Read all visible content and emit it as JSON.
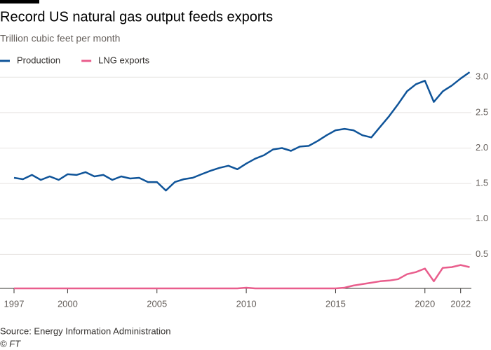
{
  "chart_data": {
    "type": "line",
    "title": "Record US natural gas output feeds exports",
    "subtitle": "Trillion cubic feet per month",
    "source": "Source: Energy Information Administration",
    "credit": "© FT",
    "x": [
      1997,
      1997.5,
      1998,
      1998.5,
      1999,
      1999.5,
      2000,
      2000.5,
      2001,
      2001.5,
      2002,
      2002.5,
      2003,
      2003.5,
      2004,
      2004.5,
      2005,
      2005.5,
      2006,
      2006.5,
      2007,
      2007.5,
      2008,
      2008.5,
      2009,
      2009.5,
      2010,
      2010.5,
      2011,
      2011.5,
      2012,
      2012.5,
      2013,
      2013.5,
      2014,
      2014.5,
      2015,
      2015.5,
      2016,
      2016.5,
      2017,
      2017.5,
      2018,
      2018.5,
      2019,
      2019.5,
      2020,
      2020.5,
      2021,
      2021.5,
      2022,
      2022.5
    ],
    "series": [
      {
        "name": "Production",
        "color": "#0f5499",
        "values": [
          1.58,
          1.56,
          1.62,
          1.55,
          1.6,
          1.55,
          1.63,
          1.62,
          1.66,
          1.6,
          1.62,
          1.55,
          1.6,
          1.57,
          1.58,
          1.52,
          1.52,
          1.4,
          1.52,
          1.56,
          1.58,
          1.63,
          1.68,
          1.72,
          1.75,
          1.7,
          1.78,
          1.85,
          1.9,
          1.98,
          2.0,
          1.96,
          2.02,
          2.03,
          2.1,
          2.18,
          2.25,
          2.27,
          2.25,
          2.18,
          2.15,
          2.3,
          2.45,
          2.62,
          2.8,
          2.9,
          2.95,
          2.65,
          2.8,
          2.88,
          2.98,
          3.07
        ]
      },
      {
        "name": "LNG exports",
        "color": "#e95d8c",
        "values": [
          0.02,
          0.02,
          0.02,
          0.02,
          0.02,
          0.02,
          0.02,
          0.02,
          0.02,
          0.02,
          0.02,
          0.02,
          0.02,
          0.02,
          0.02,
          0.02,
          0.02,
          0.02,
          0.02,
          0.02,
          0.02,
          0.02,
          0.02,
          0.02,
          0.02,
          0.02,
          0.03,
          0.02,
          0.02,
          0.02,
          0.02,
          0.02,
          0.02,
          0.02,
          0.02,
          0.02,
          0.02,
          0.03,
          0.06,
          0.08,
          0.1,
          0.12,
          0.13,
          0.15,
          0.22,
          0.25,
          0.3,
          0.12,
          0.31,
          0.32,
          0.35,
          0.32
        ]
      }
    ],
    "xlim": [
      1997,
      2022.6
    ],
    "xticks": [
      1997,
      2000,
      2005,
      2010,
      2015,
      2020,
      2022
    ],
    "ylim": [
      0,
      3.15
    ],
    "yticks": [
      {
        "value": 3,
        "label": "3.0"
      },
      2.5,
      {
        "value": 2,
        "label": "2.0"
      },
      1.5,
      {
        "value": 1,
        "label": "1.0"
      },
      0.5
    ],
    "grid": true
  }
}
